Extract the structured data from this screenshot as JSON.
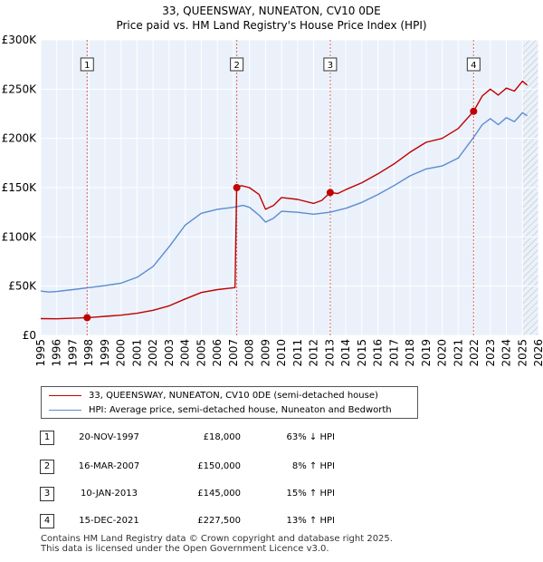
{
  "chart_data": {
    "type": "line",
    "title": "33, QUEENSWAY, NUNEATON, CV10 0DE",
    "subtitle": "Price paid vs. HM Land Registry's House Price Index (HPI)",
    "xlim": [
      1995,
      2026
    ],
    "ylim": [
      0,
      300000
    ],
    "x_ticks": [
      1995,
      1996,
      1997,
      1998,
      1999,
      2000,
      2001,
      2002,
      2003,
      2004,
      2005,
      2006,
      2007,
      2008,
      2009,
      2010,
      2011,
      2012,
      2013,
      2014,
      2015,
      2016,
      2017,
      2018,
      2019,
      2020,
      2021,
      2022,
      2023,
      2024,
      2025,
      2026
    ],
    "y_ticks": [
      {
        "value": 0,
        "label": "£0"
      },
      {
        "value": 50000,
        "label": "£50K"
      },
      {
        "value": 100000,
        "label": "£100K"
      },
      {
        "value": 150000,
        "label": "£150K"
      },
      {
        "value": 200000,
        "label": "£200K"
      },
      {
        "value": 250000,
        "label": "£250K"
      },
      {
        "value": 300000,
        "label": "£300K"
      }
    ],
    "grid": true,
    "hatched_after": 2025.0,
    "series": [
      {
        "name": "33, QUEENSWAY, NUNEATON, CV10 0DE (semi-detached house)",
        "color": "#c00000",
        "points": [
          [
            1995,
            17000
          ],
          [
            1996,
            16800
          ],
          [
            1997,
            17400
          ],
          [
            1997.9,
            18000
          ],
          [
            1998.5,
            18700
          ],
          [
            1999,
            19300
          ],
          [
            2000,
            20500
          ],
          [
            2001,
            22500
          ],
          [
            2002,
            25500
          ],
          [
            2003,
            30000
          ],
          [
            2004,
            37000
          ],
          [
            2005,
            43500
          ],
          [
            2006,
            46500
          ],
          [
            2007.1,
            48500
          ],
          [
            2007.2,
            150000
          ],
          [
            2007.5,
            152000
          ],
          [
            2008,
            150000
          ],
          [
            2008.6,
            143000
          ],
          [
            2009,
            128000
          ],
          [
            2009.5,
            132000
          ],
          [
            2010,
            140000
          ],
          [
            2011,
            138000
          ],
          [
            2012,
            134000
          ],
          [
            2012.5,
            137000
          ],
          [
            2013.03,
            145000
          ],
          [
            2013.5,
            144000
          ],
          [
            2014,
            148000
          ],
          [
            2015,
            155000
          ],
          [
            2016,
            164000
          ],
          [
            2017,
            174000
          ],
          [
            2018,
            186000
          ],
          [
            2019,
            196000
          ],
          [
            2020,
            200000
          ],
          [
            2021,
            210000
          ],
          [
            2021.96,
            227500
          ],
          [
            2022.5,
            243000
          ],
          [
            2023,
            250000
          ],
          [
            2023.5,
            244000
          ],
          [
            2024,
            251000
          ],
          [
            2024.5,
            248000
          ],
          [
            2025,
            258000
          ],
          [
            2025.3,
            254000
          ]
        ]
      },
      {
        "name": "HPI: Average price, semi-detached house, Nuneaton and Bedworth",
        "color": "#5b8bd0",
        "points": [
          [
            1995,
            45000
          ],
          [
            1995.5,
            44000
          ],
          [
            1996,
            44500
          ],
          [
            1997,
            46500
          ],
          [
            1998,
            48500
          ],
          [
            1999,
            50500
          ],
          [
            2000,
            53000
          ],
          [
            2001,
            59000
          ],
          [
            2002,
            70000
          ],
          [
            2003,
            90000
          ],
          [
            2004,
            112000
          ],
          [
            2005,
            124000
          ],
          [
            2006,
            128000
          ],
          [
            2007,
            130000
          ],
          [
            2007.6,
            132000
          ],
          [
            2008,
            130000
          ],
          [
            2008.6,
            122000
          ],
          [
            2009,
            115000
          ],
          [
            2009.5,
            119000
          ],
          [
            2010,
            126000
          ],
          [
            2011,
            125000
          ],
          [
            2012,
            123000
          ],
          [
            2013,
            125000
          ],
          [
            2014,
            129000
          ],
          [
            2015,
            135000
          ],
          [
            2016,
            143000
          ],
          [
            2017,
            152000
          ],
          [
            2018,
            162000
          ],
          [
            2019,
            169000
          ],
          [
            2020,
            172000
          ],
          [
            2021,
            180000
          ],
          [
            2021.96,
            201000
          ],
          [
            2022.5,
            214000
          ],
          [
            2023,
            220000
          ],
          [
            2023.5,
            214000
          ],
          [
            2024,
            221000
          ],
          [
            2024.5,
            217000
          ],
          [
            2025,
            226000
          ],
          [
            2025.3,
            223000
          ]
        ]
      }
    ],
    "sales": [
      {
        "id": "1",
        "x": 1997.89,
        "price": 18000,
        "date": "20-NOV-1997",
        "price_label": "£18,000",
        "hpi": "63% ↓ HPI"
      },
      {
        "id": "2",
        "x": 2007.21,
        "price": 150000,
        "date": "16-MAR-2007",
        "price_label": "£150,000",
        "hpi": "8% ↑ HPI"
      },
      {
        "id": "3",
        "x": 2013.03,
        "price": 145000,
        "date": "10-JAN-2013",
        "price_label": "£145,000",
        "hpi": "15% ↑ HPI"
      },
      {
        "id": "4",
        "x": 2021.96,
        "price": 227500,
        "date": "15-DEC-2021",
        "price_label": "£227,500",
        "hpi": "13% ↑ HPI"
      }
    ]
  },
  "footer": {
    "line1": "Contains HM Land Registry data © Crown copyright and database right 2025.",
    "line2": "This data is licensed under the Open Government Licence v3.0."
  }
}
